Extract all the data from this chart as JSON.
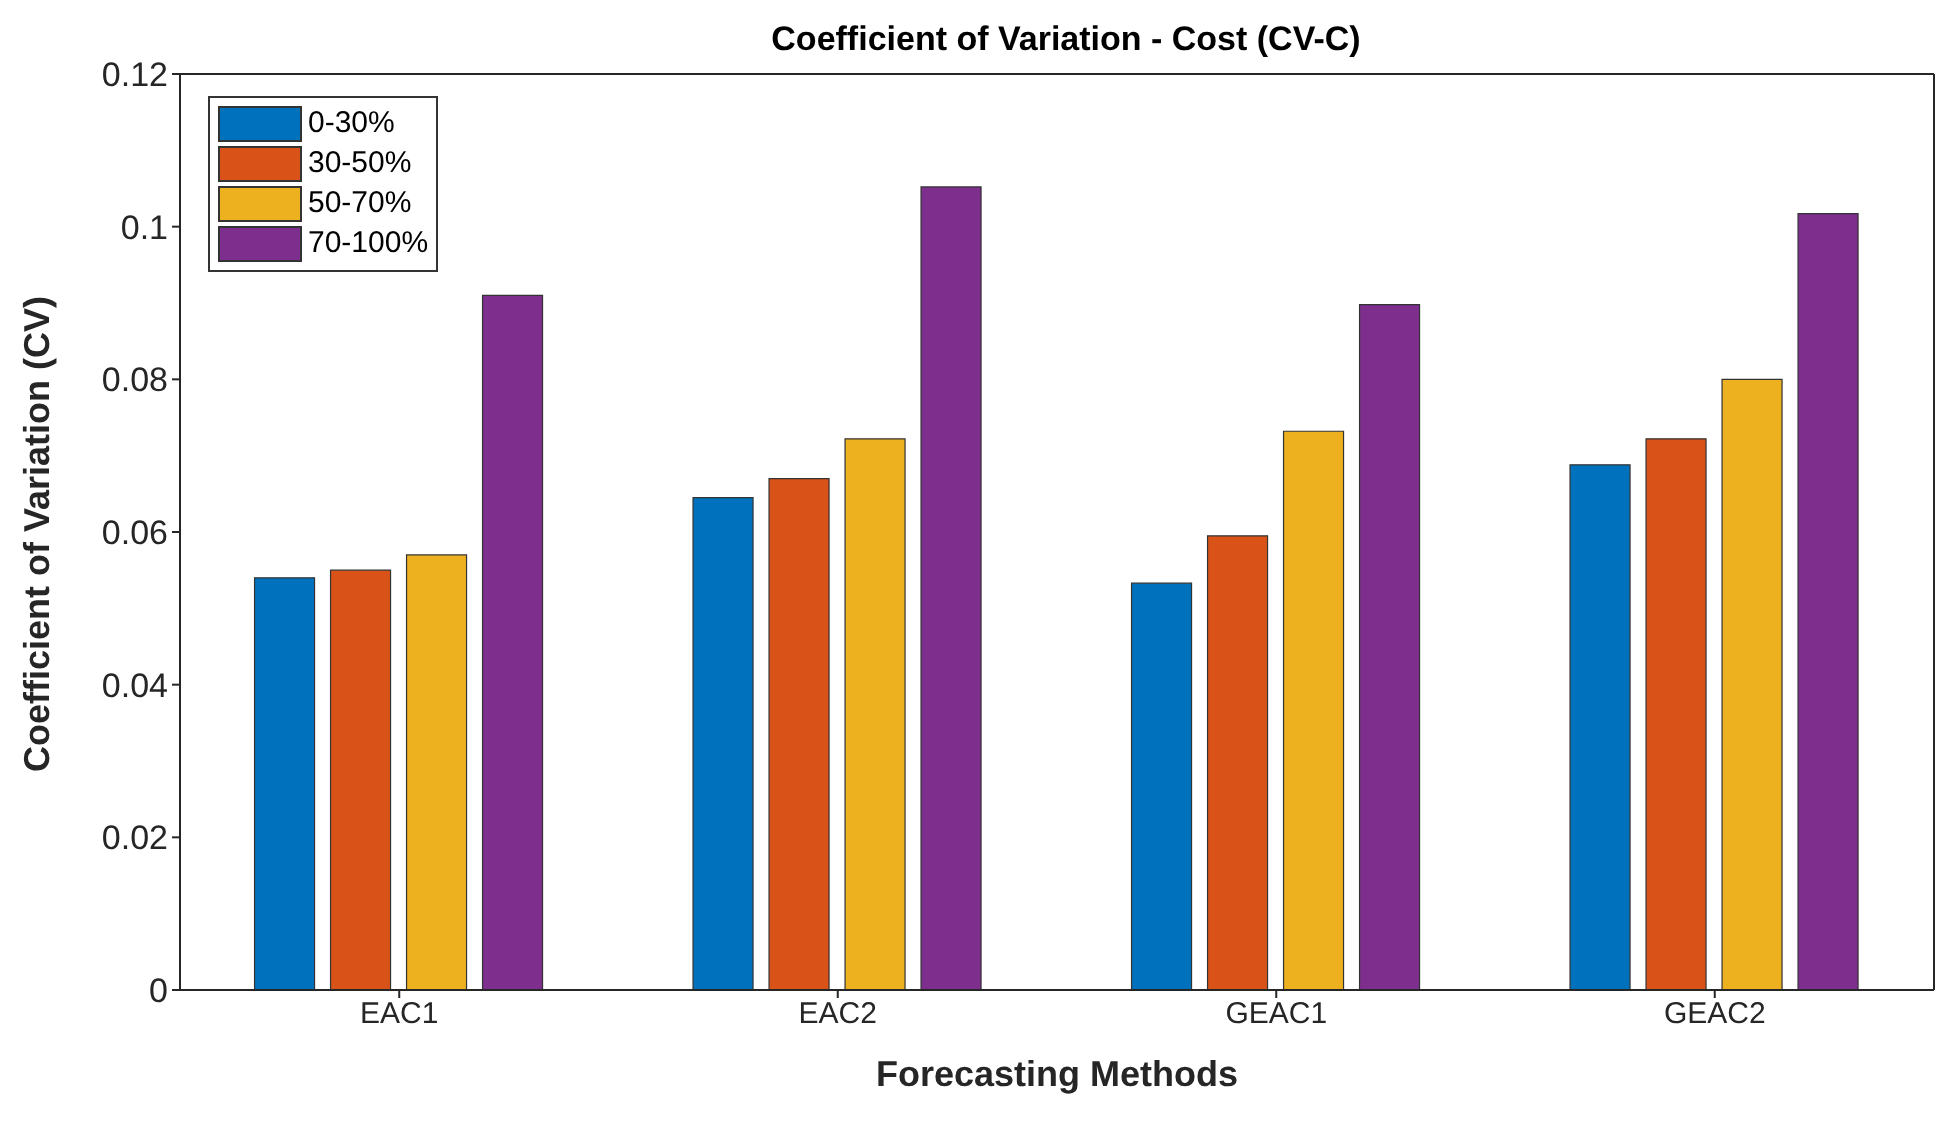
{
  "chart_data": {
    "type": "bar",
    "title": "Coefficient of Variation - Cost (CV-C)",
    "xlabel": "Forecasting Methods",
    "ylabel": "Coefficient of Variation (CV)",
    "categories": [
      "EAC1",
      "EAC2",
      "GEAC1",
      "GEAC2"
    ],
    "series": [
      {
        "name": "0-30%",
        "color": "#0072bd",
        "values": [
          0.054,
          0.0645,
          0.0533,
          0.0688
        ]
      },
      {
        "name": "30-50%",
        "color": "#d95319",
        "values": [
          0.055,
          0.067,
          0.0595,
          0.0722
        ]
      },
      {
        "name": "50-70%",
        "color": "#edb120",
        "values": [
          0.057,
          0.0722,
          0.0732,
          0.08
        ]
      },
      {
        "name": "70-100%",
        "color": "#7e2f8e",
        "values": [
          0.091,
          0.1052,
          0.0898,
          0.1017
        ]
      }
    ],
    "ylim": [
      0,
      0.12
    ],
    "yticks": [
      0,
      0.02,
      0.04,
      0.06,
      0.08,
      0.1,
      0.12
    ],
    "grid": false,
    "legend": "top left"
  }
}
